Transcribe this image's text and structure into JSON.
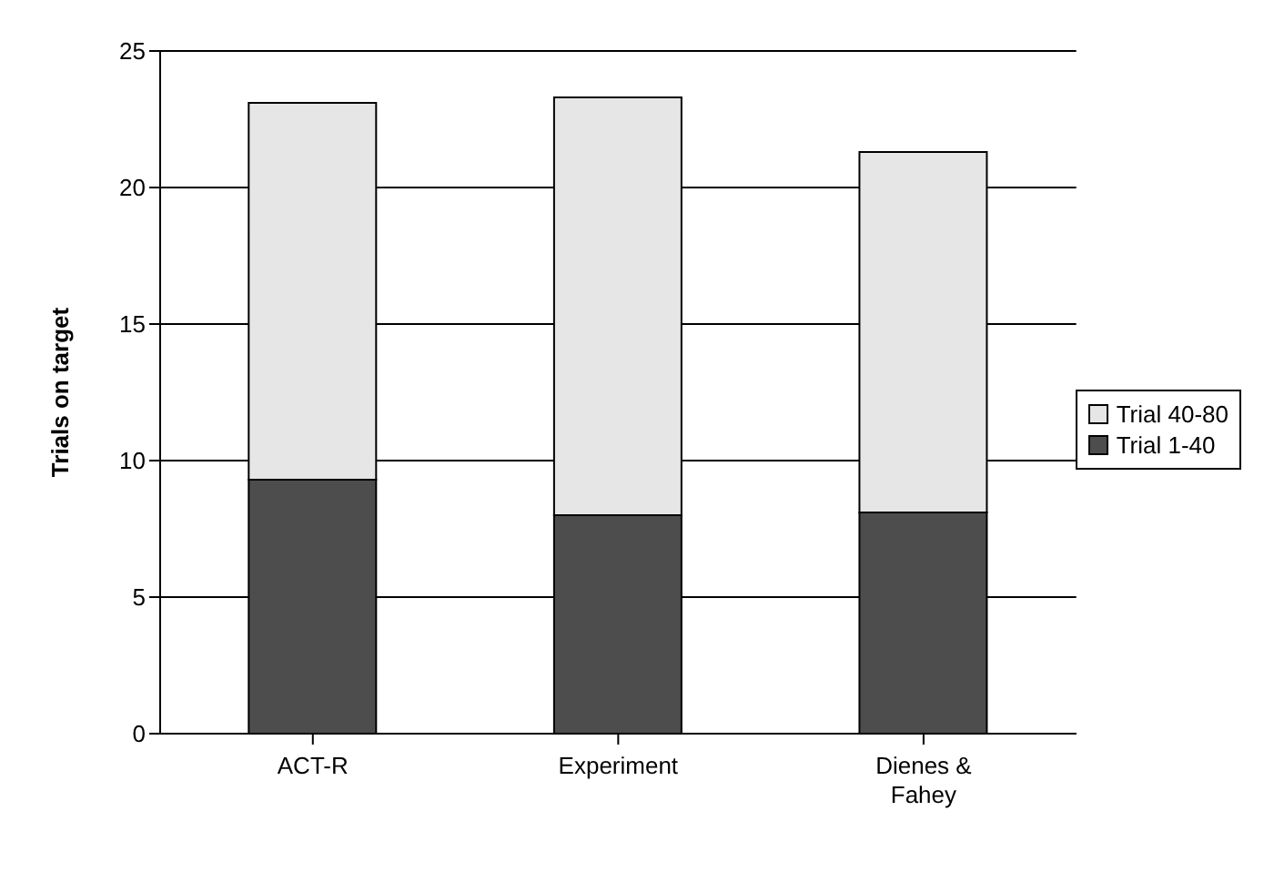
{
  "chart_data": {
    "type": "bar",
    "stacked": true,
    "ylabel": "Trials on target",
    "categories": [
      "ACT-R",
      "Experiment",
      "Dienes & Fahey"
    ],
    "series": [
      {
        "name": "Trial 1-40",
        "color": "#4d4d4d",
        "values": [
          9.3,
          8.0,
          8.1
        ]
      },
      {
        "name": "Trial 40-80",
        "color": "#e6e6e6",
        "values": [
          13.8,
          15.3,
          13.2
        ]
      }
    ],
    "ylim": [
      0,
      25
    ],
    "yticks": [
      0,
      5,
      10,
      15,
      20,
      25
    ],
    "grid": "y",
    "legend": "right"
  }
}
